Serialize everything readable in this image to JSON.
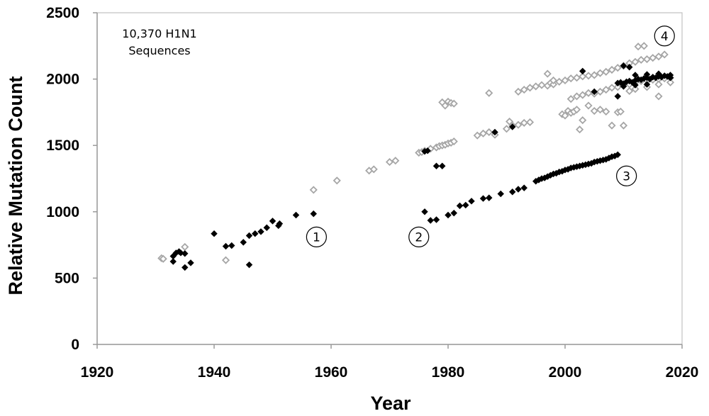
{
  "chart_data": {
    "type": "scatter",
    "title": "",
    "xlabel": "Year",
    "ylabel": "Relative Mutation Count",
    "xlim": [
      1920,
      2020
    ],
    "ylim": [
      0,
      2500
    ],
    "xticks": [
      "1920",
      "1940",
      "1960",
      "1980",
      "2000",
      "2020"
    ],
    "yticks": [
      "0",
      "500",
      "1000",
      "1500",
      "2000",
      "2500"
    ],
    "grid": false,
    "annotation": {
      "line1": "10,370 H1N1",
      "line2": "Sequences"
    },
    "callouts": [
      {
        "label": "1",
        "x": 1957.5,
        "y": 810
      },
      {
        "label": "2",
        "x": 1975,
        "y": 810
      },
      {
        "label": "3",
        "x": 2010.5,
        "y": 1270
      },
      {
        "label": "4",
        "x": 2017,
        "y": 2325
      }
    ],
    "series": [
      {
        "name": "Lineage A (grey open diamonds)",
        "marker": "diamond-open",
        "color": "#a6a6a6",
        "points": [
          [
            1931,
            650
          ],
          [
            1931.3,
            645
          ],
          [
            1935,
            735
          ],
          [
            1942,
            635
          ],
          [
            1957,
            1165
          ],
          [
            1961,
            1235
          ],
          [
            1966.5,
            1310
          ],
          [
            1967.3,
            1320
          ],
          [
            1970,
            1375
          ],
          [
            1971,
            1385
          ],
          [
            1975,
            1445
          ],
          [
            1975.5,
            1450
          ],
          [
            1976,
            1460
          ],
          [
            1977,
            1475
          ],
          [
            1978,
            1485
          ],
          [
            1978.5,
            1495
          ],
          [
            1979,
            1500
          ],
          [
            1979.5,
            1505
          ],
          [
            1980,
            1515
          ],
          [
            1980.5,
            1520
          ],
          [
            1981,
            1530
          ],
          [
            1979,
            1825
          ],
          [
            1980,
            1830
          ],
          [
            1980.5,
            1820
          ],
          [
            1981,
            1815
          ],
          [
            1979.5,
            1800
          ],
          [
            1985,
            1575
          ],
          [
            1986,
            1590
          ],
          [
            1987,
            1600
          ],
          [
            1988,
            1580
          ],
          [
            1987,
            1895
          ],
          [
            1990,
            1625
          ],
          [
            1990.5,
            1680
          ],
          [
            1991,
            1650
          ],
          [
            1992,
            1655
          ],
          [
            1993,
            1670
          ],
          [
            1994,
            1675
          ],
          [
            1992,
            1905
          ],
          [
            1993,
            1920
          ],
          [
            1994,
            1935
          ],
          [
            1995,
            1945
          ],
          [
            1996,
            1955
          ],
          [
            1997,
            1950
          ],
          [
            1997.5,
            1970
          ],
          [
            1998,
            1960
          ],
          [
            1999,
            1980
          ],
          [
            2000,
            1990
          ],
          [
            2001,
            2005
          ],
          [
            2002,
            2010
          ],
          [
            2003,
            2020
          ],
          [
            2004,
            2025
          ],
          [
            2005,
            2030
          ],
          [
            2006,
            2045
          ],
          [
            2007,
            2055
          ],
          [
            2008,
            2070
          ],
          [
            2009,
            2085
          ],
          [
            2010,
            2100
          ],
          [
            2011,
            2120
          ],
          [
            2012,
            2130
          ],
          [
            2013,
            2145
          ],
          [
            2014,
            2150
          ],
          [
            2015,
            2160
          ],
          [
            2016,
            2170
          ],
          [
            2017,
            2185
          ],
          [
            2012.5,
            2245
          ],
          [
            2013.5,
            2250
          ],
          [
            1997,
            2040
          ],
          [
            1998,
            1990
          ],
          [
            1999.5,
            1735
          ],
          [
            2000,
            1725
          ],
          [
            2000.5,
            1760
          ],
          [
            2001,
            1745
          ],
          [
            2001.5,
            1755
          ],
          [
            2002,
            1770
          ],
          [
            2002.5,
            1620
          ],
          [
            2003,
            1690
          ],
          [
            2004,
            1800
          ],
          [
            2005,
            1760
          ],
          [
            2006,
            1770
          ],
          [
            2007,
            1755
          ],
          [
            2008,
            1650
          ],
          [
            2009,
            1750
          ],
          [
            2010,
            1650
          ],
          [
            2009.5,
            1755
          ],
          [
            2001,
            1850
          ],
          [
            2002,
            1870
          ],
          [
            2003,
            1880
          ],
          [
            2004,
            1895
          ],
          [
            2005,
            1890
          ],
          [
            2006,
            1905
          ],
          [
            2007,
            1920
          ],
          [
            2008,
            1935
          ],
          [
            2009,
            1940
          ],
          [
            2010,
            1955
          ],
          [
            2011,
            1960
          ],
          [
            2012,
            1975
          ],
          [
            2013,
            1985
          ],
          [
            2014,
            1990
          ],
          [
            2015,
            1995
          ],
          [
            2016,
            2000
          ],
          [
            2017,
            2005
          ],
          [
            2018,
            2010
          ],
          [
            2016,
            1870
          ],
          [
            2011,
            1910
          ],
          [
            2012,
            1925
          ],
          [
            2014,
            1940
          ],
          [
            2016,
            1960
          ],
          [
            2018,
            1975
          ]
        ]
      },
      {
        "name": "Lineage B (black filled diamonds)",
        "marker": "diamond-filled",
        "color": "#000000",
        "points": [
          [
            1933,
            665
          ],
          [
            1933.5,
            690
          ],
          [
            1934,
            700
          ],
          [
            1934.3,
            690
          ],
          [
            1935,
            685
          ],
          [
            1933,
            625
          ],
          [
            1935,
            580
          ],
          [
            1936,
            615
          ],
          [
            1940,
            835
          ],
          [
            1942,
            740
          ],
          [
            1943,
            745
          ],
          [
            1945,
            770
          ],
          [
            1946,
            600
          ],
          [
            1946,
            820
          ],
          [
            1947,
            835
          ],
          [
            1948,
            850
          ],
          [
            1949,
            880
          ],
          [
            1950,
            930
          ],
          [
            1951,
            895
          ],
          [
            1951.2,
            910
          ],
          [
            1954,
            975
          ],
          [
            1957,
            985
          ],
          [
            1976,
            1455
          ],
          [
            1976.5,
            1460
          ],
          [
            1976,
            1000
          ],
          [
            1977,
            935
          ],
          [
            1978,
            940
          ],
          [
            1978,
            1345
          ],
          [
            1979,
            1345
          ],
          [
            1980,
            975
          ],
          [
            1981,
            990
          ],
          [
            1982,
            1045
          ],
          [
            1983,
            1050
          ],
          [
            1984,
            1080
          ],
          [
            1986,
            1100
          ],
          [
            1987,
            1105
          ],
          [
            1988,
            1600
          ],
          [
            1989,
            1135
          ],
          [
            1991,
            1150
          ],
          [
            1991,
            1640
          ],
          [
            1992,
            1170
          ],
          [
            1993,
            1180
          ],
          [
            1995,
            1230
          ],
          [
            1995.5,
            1240
          ],
          [
            1996,
            1250
          ],
          [
            1996.5,
            1255
          ],
          [
            1997,
            1265
          ],
          [
            1997.5,
            1275
          ],
          [
            1998,
            1285
          ],
          [
            1998.5,
            1290
          ],
          [
            1999,
            1300
          ],
          [
            1999.5,
            1305
          ],
          [
            2000,
            1315
          ],
          [
            2000.5,
            1320
          ],
          [
            2001,
            1330
          ],
          [
            2001.5,
            1335
          ],
          [
            2002,
            1340
          ],
          [
            2002.5,
            1345
          ],
          [
            2003,
            1350
          ],
          [
            2003.5,
            1355
          ],
          [
            2004,
            1360
          ],
          [
            2004.5,
            1365
          ],
          [
            2005,
            1375
          ],
          [
            2005.5,
            1380
          ],
          [
            2006,
            1385
          ],
          [
            2006.5,
            1390
          ],
          [
            2007,
            1395
          ],
          [
            2007.5,
            1405
          ],
          [
            2008,
            1415
          ],
          [
            2008.5,
            1420
          ],
          [
            2009,
            1430
          ],
          [
            2003,
            2060
          ],
          [
            2005,
            1905
          ],
          [
            2009,
            1870
          ],
          [
            2010,
            2100
          ],
          [
            2011,
            2090
          ],
          [
            2009,
            1970
          ],
          [
            2009.5,
            1975
          ],
          [
            2010,
            1965
          ],
          [
            2010.5,
            1980
          ],
          [
            2011,
            1985
          ],
          [
            2011.5,
            1975
          ],
          [
            2012,
            1990
          ],
          [
            2012.5,
            2000
          ],
          [
            2013,
            1995
          ],
          [
            2013.5,
            2005
          ],
          [
            2014,
            2010
          ],
          [
            2014.5,
            2000
          ],
          [
            2015,
            2015
          ],
          [
            2015.5,
            2010
          ],
          [
            2016,
            2020
          ],
          [
            2016.5,
            2015
          ],
          [
            2017,
            2025
          ],
          [
            2017.5,
            2020
          ],
          [
            2018,
            2030
          ],
          [
            2018,
            2010
          ],
          [
            2012,
            2030
          ],
          [
            2014,
            2035
          ],
          [
            2016,
            2040
          ],
          [
            2010,
            1945
          ],
          [
            2012,
            1955
          ],
          [
            2014,
            1960
          ]
        ]
      }
    ]
  }
}
